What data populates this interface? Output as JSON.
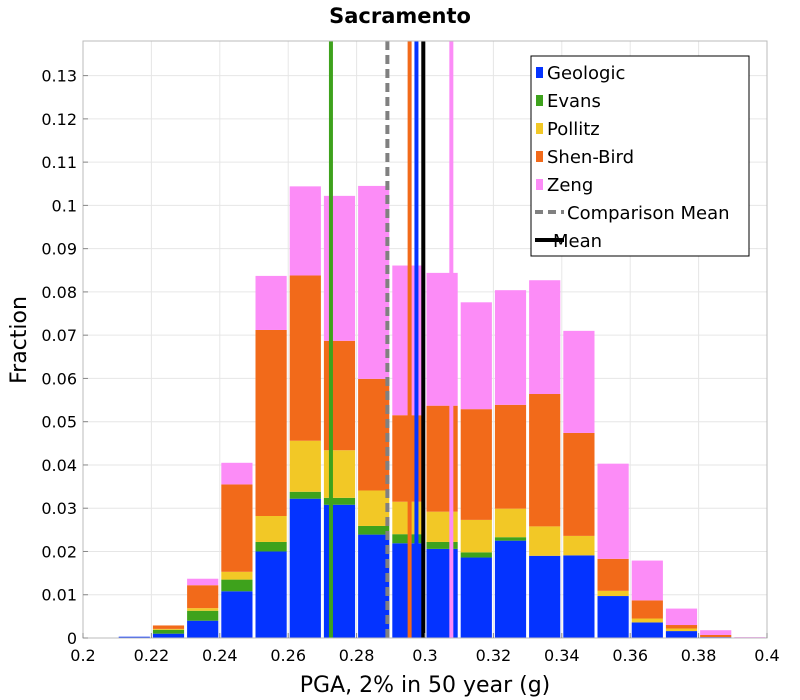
{
  "chart_data": {
    "type": "bar",
    "stacked": true,
    "title": "Sacramento",
    "xlabel": "PGA, 2% in 50 year (g)",
    "ylabel": "Fraction",
    "xlim": [
      0.2,
      0.4
    ],
    "ylim": [
      0,
      0.138
    ],
    "grid": true,
    "legend_position": "top-right",
    "xticks": [
      "0.2",
      "0.22",
      "0.24",
      "0.26",
      "0.28",
      "0.3",
      "0.32",
      "0.34",
      "0.36",
      "0.38",
      "0.4"
    ],
    "yticks": [
      "0",
      "0.01",
      "0.02",
      "0.03",
      "0.04",
      "0.05",
      "0.06",
      "0.07",
      "0.08",
      "0.09",
      "0.1",
      "0.11",
      "0.12",
      "0.13"
    ],
    "bin_width": 0.01,
    "bin_starts": [
      0.21,
      0.22,
      0.23,
      0.24,
      0.25,
      0.26,
      0.27,
      0.28,
      0.29,
      0.3,
      0.31,
      0.32,
      0.33,
      0.34,
      0.35,
      0.36,
      0.37,
      0.38,
      0.39
    ],
    "series": [
      {
        "name": "Geologic",
        "color": "#0433ff",
        "values": [
          0.0003,
          0.001,
          0.004,
          0.0108,
          0.02,
          0.0322,
          0.0308,
          0.0239,
          0.0219,
          0.0206,
          0.0186,
          0.0225,
          0.019,
          0.0191,
          0.0097,
          0.0036,
          0.0016,
          0.0002,
          0.0
        ]
      },
      {
        "name": "Evans",
        "color": "#3ea21c",
        "values": [
          0.0,
          0.0009,
          0.0023,
          0.0027,
          0.0022,
          0.0016,
          0.0016,
          0.002,
          0.0021,
          0.0016,
          0.0012,
          0.0008,
          0.0,
          0.0,
          0.0,
          0.0,
          0.0,
          0.0,
          0.0
        ]
      },
      {
        "name": "Pollitz",
        "color": "#f2c826",
        "values": [
          0.0,
          0.0002,
          0.0006,
          0.0018,
          0.006,
          0.0118,
          0.011,
          0.0082,
          0.0075,
          0.007,
          0.0075,
          0.0066,
          0.0068,
          0.0045,
          0.0012,
          0.0009,
          0.0006,
          0.0,
          0.0
        ]
      },
      {
        "name": "Shen-Bird",
        "color": "#f26a1a",
        "values": [
          0.0,
          0.0008,
          0.0053,
          0.0202,
          0.043,
          0.0382,
          0.0253,
          0.0258,
          0.02,
          0.0245,
          0.0256,
          0.024,
          0.0306,
          0.0238,
          0.0074,
          0.0042,
          0.0008,
          0.0005,
          0.0
        ]
      },
      {
        "name": "Zeng",
        "color": "#fc8cf7",
        "values": [
          0.0,
          0.0,
          0.0015,
          0.005,
          0.0125,
          0.0206,
          0.0335,
          0.0446,
          0.0346,
          0.0307,
          0.0247,
          0.0265,
          0.0263,
          0.0236,
          0.022,
          0.0092,
          0.0038,
          0.0011,
          0.0002
        ]
      }
    ],
    "vertical_lines": [
      {
        "name": "Evans",
        "x": 0.2725,
        "color": "#3ea21c",
        "style": "solid"
      },
      {
        "name": "Comparison Mean",
        "x": 0.289,
        "color": "#808080",
        "style": "dashed"
      },
      {
        "name": "Shen-Bird",
        "x": 0.2955,
        "color": "#f26a1a",
        "style": "solid"
      },
      {
        "name": "Geologic",
        "x": 0.2975,
        "color": "#0433ff",
        "style": "solid"
      },
      {
        "name": "Mean",
        "x": 0.2995,
        "color": "#000000",
        "style": "solid"
      },
      {
        "name": "Zeng",
        "x": 0.3077,
        "color": "#fc8cf7",
        "style": "solid"
      }
    ],
    "legend": [
      {
        "label": "Geologic",
        "kind": "box",
        "color": "#0433ff"
      },
      {
        "label": "Evans",
        "kind": "box",
        "color": "#3ea21c"
      },
      {
        "label": "Pollitz",
        "kind": "box",
        "color": "#f2c826"
      },
      {
        "label": "Shen-Bird",
        "kind": "box",
        "color": "#f26a1a"
      },
      {
        "label": "Zeng",
        "kind": "box",
        "color": "#fc8cf7"
      },
      {
        "label": "Comparison Mean",
        "kind": "dashed",
        "color": "#808080"
      },
      {
        "label": "Mean",
        "kind": "line",
        "color": "#000000"
      }
    ]
  }
}
